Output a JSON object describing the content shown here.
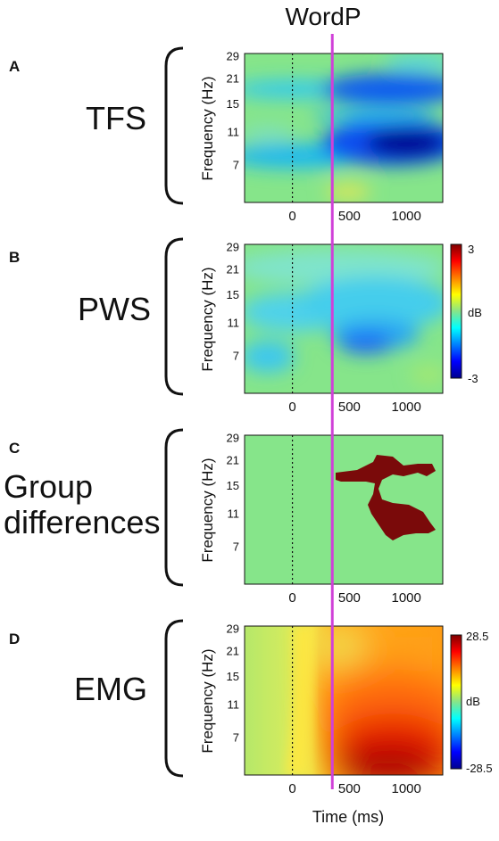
{
  "event_label": "WordP",
  "colors": {
    "event_line": "#d040d8",
    "cluster": "#7a0a0a",
    "background_green": "#86e58a"
  },
  "panels": [
    {
      "letter": "A",
      "group_label_lines": [
        "TFS"
      ]
    },
    {
      "letter": "B",
      "group_label_lines": [
        "PWS"
      ]
    },
    {
      "letter": "C",
      "group_label_lines": [
        "Group",
        "differences"
      ]
    },
    {
      "letter": "D",
      "group_label_lines": [
        "EMG"
      ]
    }
  ],
  "chart_data": {
    "type": "heatmap",
    "x_label": "Time (ms)",
    "y_label": "Frequency (Hz)",
    "x_ticks": [
      0,
      500,
      1000
    ],
    "y_ticks": [
      7,
      11,
      15,
      21,
      29
    ],
    "xlim": [
      -420,
      1320
    ],
    "event_time_ms": 350,
    "colorbars": [
      {
        "panel": "B",
        "unit": "dB",
        "min": -3,
        "max": 3,
        "min_label": "-3",
        "max_label": "3"
      },
      {
        "panel": "D",
        "unit": "dB",
        "min": -28.5,
        "max": 28.5,
        "min_label": "-28.5",
        "max_label": "28.5"
      }
    ]
  }
}
